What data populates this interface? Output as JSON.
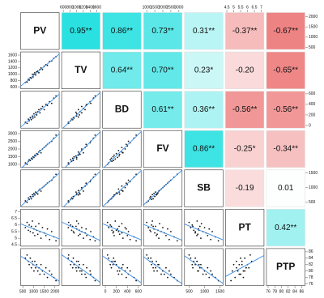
{
  "chart_data": {
    "type": "pairs",
    "colors": {
      "positive": "#1fdede",
      "negative": "#e64646",
      "points": "#111111",
      "fit": "#3a8ee6"
    },
    "variables": [
      {
        "name": "PV",
        "lim": [
          400,
          2200
        ],
        "ticks": [
          500,
          1000,
          1500,
          2000
        ],
        "values": [
          620,
          700,
          760,
          800,
          850,
          900,
          950,
          980,
          1020,
          1060,
          1100,
          1150,
          1200,
          1250,
          1300,
          1350,
          1420,
          1500,
          1580,
          1650,
          1750,
          1850,
          1950,
          2050
        ]
      },
      {
        "name": "TV",
        "lim": [
          550,
          1700
        ],
        "ticks": [
          600,
          800,
          1000,
          1200,
          1400,
          1600
        ],
        "values": [
          750,
          760,
          850,
          820,
          900,
          880,
          1000,
          920,
          1000,
          1050,
          980,
          1080,
          1100,
          1050,
          1150,
          1200,
          1150,
          1250,
          1300,
          1280,
          1400,
          1420,
          1500,
          1550
        ]
      },
      {
        "name": "BD",
        "lim": [
          -50,
          650
        ],
        "ticks": [
          0,
          200,
          400,
          600
        ],
        "values": [
          60,
          40,
          120,
          90,
          150,
          110,
          180,
          140,
          220,
          160,
          250,
          200,
          260,
          300,
          240,
          320,
          360,
          300,
          400,
          380,
          450,
          420,
          520,
          560
        ]
      },
      {
        "name": "FV",
        "lim": [
          800,
          3200
        ],
        "ticks": [
          1000,
          1500,
          2000,
          2500,
          3000
        ],
        "values": [
          1100,
          1000,
          1200,
          1300,
          1250,
          1400,
          1350,
          1500,
          1450,
          1600,
          1550,
          1700,
          1650,
          1800,
          1900,
          1750,
          2000,
          2100,
          2200,
          2300,
          2400,
          2500,
          2700,
          2900
        ]
      },
      {
        "name": "SB",
        "lim": [
          350,
          1600
        ],
        "ticks": [
          500,
          1000,
          1500
        ],
        "values": [
          550,
          500,
          650,
          600,
          700,
          620,
          760,
          700,
          800,
          750,
          850,
          820,
          780,
          900,
          950,
          880,
          1000,
          1050,
          1100,
          1150,
          1200,
          1250,
          1350,
          1450
        ]
      },
      {
        "name": "PT",
        "lim": [
          4.4,
          7.2
        ],
        "ticks": [
          4.5,
          5,
          5.5,
          6,
          6.5,
          7
        ],
        "values": [
          5.8,
          6.2,
          5.6,
          6.0,
          5.5,
          5.9,
          6.3,
          5.4,
          5.7,
          5.2,
          5.9,
          5.6,
          5.3,
          6.1,
          5.5,
          5.0,
          5.8,
          5.4,
          5.2,
          5.7,
          4.9,
          5.5,
          5.1,
          4.8
        ]
      },
      {
        "name": "PTP",
        "lim": [
          75.5,
          87
        ],
        "ticks": [
          76,
          78,
          80,
          82,
          84,
          86
        ],
        "values": [
          84,
          85,
          83,
          82,
          84,
          81,
          83,
          82,
          80,
          83,
          81,
          82,
          80,
          81,
          79,
          82,
          80,
          79,
          81,
          78,
          80,
          79,
          78,
          77
        ]
      }
    ],
    "correlations": [
      [
        0.95,
        0.86,
        0.73,
        0.31,
        -0.37,
        -0.67
      ],
      [
        0.64,
        0.7,
        0.23,
        -0.2,
        -0.65
      ],
      [
        0.61,
        0.36,
        -0.56,
        -0.56
      ],
      [
        0.86,
        -0.25,
        -0.34
      ],
      [
        -0.19,
        0.01
      ],
      [
        0.42
      ]
    ],
    "value_labels": [
      [
        "0.95**",
        "0.86**",
        "0.73**",
        "0.31**",
        "-0.37**",
        "-0.67**"
      ],
      [
        "0.64**",
        "0.70**",
        "0.23*",
        "-0.20",
        "-0.65**"
      ],
      [
        "0.61**",
        "0.36**",
        "-0.56**",
        "-0.56**"
      ],
      [
        "0.86**",
        "-0.25*",
        "-0.34**"
      ],
      [
        "-0.19",
        "0.01"
      ],
      [
        "0.42**"
      ]
    ]
  }
}
